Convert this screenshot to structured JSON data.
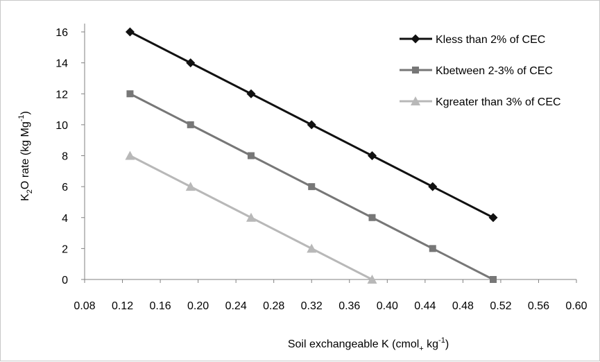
{
  "chart_data": {
    "type": "line",
    "title": "",
    "xlabel": {
      "main": "Soil exchangeable K (cmol",
      "sub": "+",
      "mid": " kg",
      "sup": "-1",
      "end": ")"
    },
    "ylabel": {
      "pre": "K",
      "sub": "2",
      "mid": "O rate (kg Mg",
      "sup": "-1",
      "end": ")"
    },
    "xlim": [
      0.08,
      0.6
    ],
    "ylim": [
      0,
      16
    ],
    "xticks": [
      "0.08",
      "0.12",
      "0.16",
      "0.20",
      "0.24",
      "0.28",
      "0.32",
      "0.36",
      "0.40",
      "0.44",
      "0.48",
      "0.52",
      "0.56",
      "0.60"
    ],
    "yticks": [
      "0",
      "2",
      "4",
      "6",
      "8",
      "10",
      "12",
      "14",
      "16"
    ],
    "grid": false,
    "legend_position": "top-right",
    "series": [
      {
        "name": "Kless than 2% of CEC",
        "color": "#111111",
        "marker": "diamond",
        "x": [
          0.128,
          0.192,
          0.256,
          0.32,
          0.384,
          0.448,
          0.512
        ],
        "y": [
          16,
          14,
          12,
          10,
          8,
          6,
          4
        ]
      },
      {
        "name": "Kbetween 2-3% of CEC",
        "color": "#777777",
        "marker": "square",
        "x": [
          0.128,
          0.192,
          0.256,
          0.32,
          0.384,
          0.448,
          0.512
        ],
        "y": [
          12,
          10,
          8,
          6,
          4,
          2,
          0
        ]
      },
      {
        "name": "Kgreater than 3% of CEC",
        "color": "#b8b8b8",
        "marker": "triangle",
        "x": [
          0.128,
          0.192,
          0.256,
          0.32,
          0.384
        ],
        "y": [
          8,
          6,
          4,
          2,
          0
        ]
      }
    ]
  }
}
